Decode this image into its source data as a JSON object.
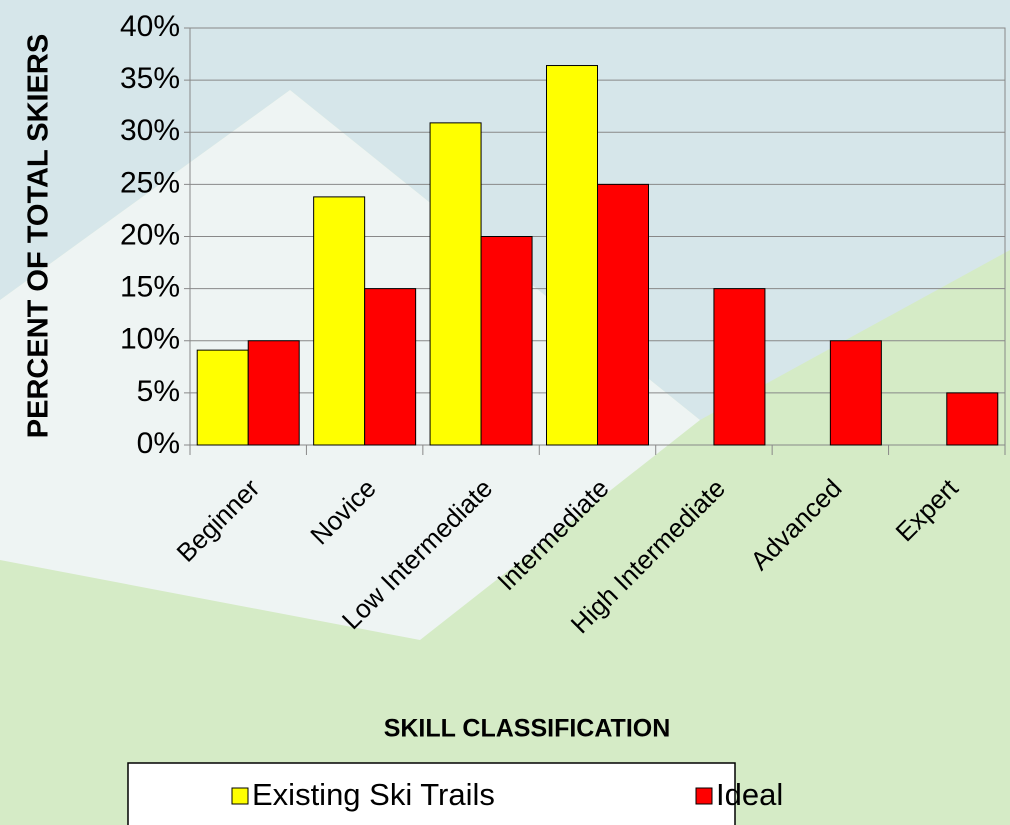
{
  "chart_data": {
    "type": "bar",
    "categories": [
      "Beginner",
      "Novice",
      "Low Intermediate",
      "Intermediate",
      "High Intermediate",
      "Advanced",
      "Expert"
    ],
    "series": [
      {
        "name": "Existing Ski Trails",
        "color": "#ffff00",
        "values": [
          9.1,
          23.8,
          30.9,
          36.4,
          0,
          0,
          0
        ]
      },
      {
        "name": "Ideal",
        "color": "#ff0000",
        "values": [
          10,
          15,
          20,
          25,
          15,
          10,
          5
        ]
      }
    ],
    "ylim": [
      0,
      40
    ],
    "yticks": [
      {
        "value": 0,
        "label": "0%"
      },
      {
        "value": 5,
        "label": "5%"
      },
      {
        "value": 10,
        "label": "10%"
      },
      {
        "value": 15,
        "label": "15%"
      },
      {
        "value": 20,
        "label": "20%"
      },
      {
        "value": 25,
        "label": "25%"
      },
      {
        "value": 30,
        "label": "30%"
      },
      {
        "value": 35,
        "label": "35%"
      },
      {
        "value": 40,
        "label": "40%"
      }
    ],
    "ylabel": "PERCENT OF TOTAL SKIERS",
    "xlabel": "SKILL CLASSIFICATION",
    "grid": true
  }
}
